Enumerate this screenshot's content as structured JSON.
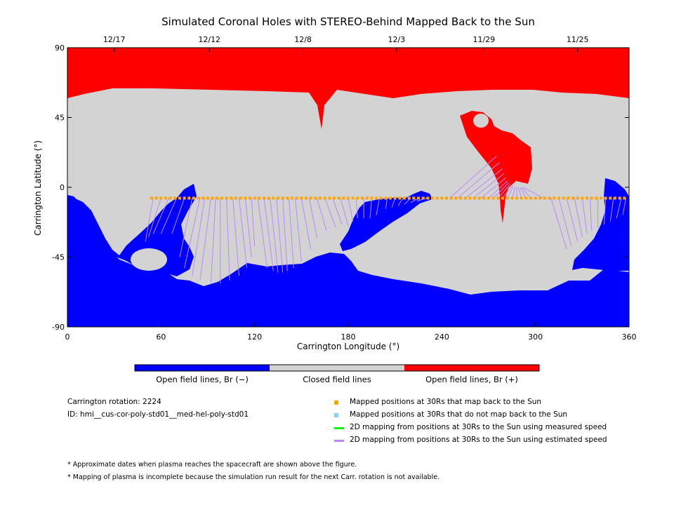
{
  "chart_data": {
    "type": "map",
    "title": "Simulated Coronal Holes with STEREO-Behind Mapped Back to the Sun",
    "xlabel": "Carrington Longitude (°)",
    "ylabel": "Carrington Latitude (°)",
    "xlim": [
      0,
      360
    ],
    "ylim": [
      -90,
      90
    ],
    "xticks": [
      0,
      60,
      120,
      180,
      240,
      300,
      360
    ],
    "yticks": [
      -90,
      -45,
      0,
      45,
      90
    ],
    "date_axis": [
      {
        "label": "12/17",
        "lon": 30
      },
      {
        "label": "12/12",
        "lon": 91
      },
      {
        "label": "12/8",
        "lon": 151
      },
      {
        "label": "12/3",
        "lon": 211
      },
      {
        "label": "11/29",
        "lon": 267
      },
      {
        "label": "11/25",
        "lon": 327
      }
    ],
    "colorbar": {
      "colors": [
        "#0000ff",
        "#d3d3d3",
        "#ff0000"
      ],
      "labels": [
        "Open field lines, Br (−)",
        "Closed field lines",
        "Open field lines, Br (+)"
      ]
    },
    "mapped_positions_lat": -7,
    "mapped_positions_lon_range": [
      54,
      359
    ],
    "footpoint_lines": [
      [
        55,
        -7,
        50,
        -35
      ],
      [
        60,
        -7,
        52,
        -32
      ],
      [
        65,
        -7,
        55,
        -30
      ],
      [
        70,
        -7,
        60,
        -30
      ],
      [
        75,
        -7,
        67,
        -30
      ],
      [
        80,
        -7,
        72,
        -45
      ],
      [
        85,
        -7,
        75,
        -52
      ],
      [
        88,
        -7,
        80,
        -57
      ],
      [
        92,
        -7,
        85,
        -60
      ],
      [
        95,
        -7,
        92,
        -62
      ],
      [
        98,
        -7,
        98,
        -62
      ],
      [
        102,
        -7,
        104,
        -60
      ],
      [
        106,
        -7,
        110,
        -57
      ],
      [
        110,
        -7,
        115,
        -52
      ],
      [
        114,
        -7,
        118,
        -45
      ],
      [
        118,
        -7,
        120,
        -38
      ],
      [
        122,
        -7,
        128,
        -52
      ],
      [
        126,
        -7,
        132,
        -54
      ],
      [
        130,
        -7,
        135,
        -55
      ],
      [
        134,
        -7,
        138,
        -55
      ],
      [
        138,
        -7,
        141,
        -54
      ],
      [
        142,
        -7,
        145,
        -52
      ],
      [
        146,
        -7,
        150,
        -48
      ],
      [
        150,
        -7,
        156,
        -40
      ],
      [
        155,
        -7,
        160,
        -33
      ],
      [
        160,
        -7,
        166,
        -28
      ],
      [
        165,
        -7,
        172,
        -26
      ],
      [
        170,
        -7,
        176,
        -24
      ],
      [
        175,
        -7,
        180,
        -25
      ],
      [
        180,
        -7,
        183,
        -22
      ],
      [
        185,
        -7,
        186,
        -20
      ],
      [
        190,
        -7,
        190,
        -20
      ],
      [
        195,
        -7,
        194,
        -20
      ],
      [
        200,
        -7,
        198,
        -18
      ],
      [
        205,
        -7,
        204,
        -14
      ],
      [
        210,
        -7,
        208,
        -13
      ],
      [
        215,
        -7,
        212,
        -12
      ],
      [
        220,
        -7,
        216,
        -11
      ],
      [
        225,
        -7,
        220,
        -10
      ],
      [
        230,
        -7,
        224,
        -9
      ],
      [
        245,
        -7,
        275,
        20
      ],
      [
        250,
        -7,
        277,
        16
      ],
      [
        255,
        -7,
        279,
        12
      ],
      [
        260,
        -7,
        280,
        9
      ],
      [
        265,
        -7,
        281,
        6
      ],
      [
        270,
        -7,
        282,
        4
      ],
      [
        273,
        -7,
        283,
        3
      ],
      [
        276,
        -7,
        284,
        2
      ],
      [
        279,
        -7,
        285,
        1
      ],
      [
        282,
        -7,
        286,
        1
      ],
      [
        285,
        -7,
        287,
        0
      ],
      [
        288,
        -7,
        288,
        0
      ],
      [
        291,
        -7,
        289,
        0
      ],
      [
        294,
        -7,
        290,
        0
      ],
      [
        297,
        -7,
        291,
        0
      ],
      [
        305,
        -7,
        292,
        0
      ],
      [
        310,
        -7,
        320,
        -40
      ],
      [
        315,
        -7,
        323,
        -38
      ],
      [
        320,
        -7,
        327,
        -35
      ],
      [
        325,
        -7,
        330,
        -32
      ],
      [
        330,
        -7,
        333,
        -30
      ],
      [
        335,
        -7,
        336,
        -28
      ],
      [
        340,
        -7,
        340,
        -26
      ],
      [
        345,
        -7,
        344,
        -24
      ],
      [
        350,
        -7,
        348,
        -22
      ],
      [
        355,
        -7,
        352,
        -20
      ],
      [
        358,
        -7,
        356,
        -18
      ]
    ]
  },
  "info": {
    "rotation": "Carrington rotation: 2224",
    "id": "ID: hmi__cus-cor-poly-std01__med-hel-poly-std01"
  },
  "legend": {
    "mapped": "Mapped positions at 30Rs that map back to the Sun",
    "not_mapped": "Mapped positions at 30Rs that do not map back to the Sun",
    "measured": "2D mapping from positions at 30Rs to the Sun using measured speed",
    "estimated": "2D mapping from positions at 30Rs to the Sun using estimated speed",
    "colors": {
      "mapped": "#ffa500",
      "not_mapped": "#87cefa",
      "measured": "#00ff00",
      "estimated": "#bb88ff"
    }
  },
  "notes": {
    "note1": "* Approximate dates when plasma reaches the spacecraft are shown above the figure.",
    "note2": "* Mapping of plasma is incomplete because the simulation run result for the next Carr. rotation is not available."
  }
}
